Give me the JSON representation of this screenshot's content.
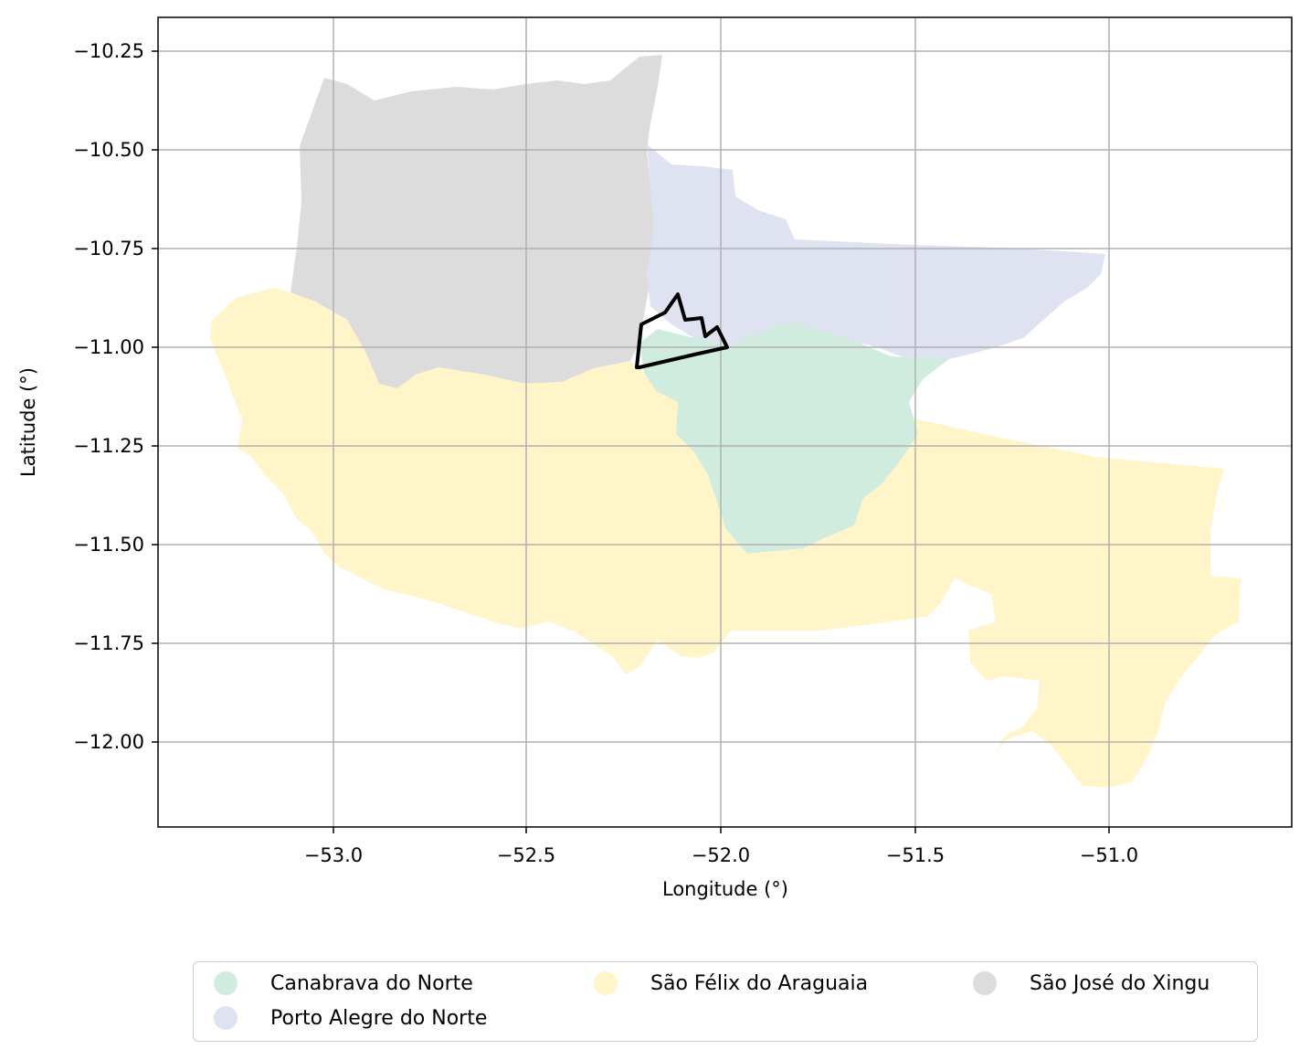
{
  "map": {
    "xlabel": "Longitude (°)",
    "ylabel": "Latitude (°)",
    "x_ticks": [
      "−53.0",
      "−52.5",
      "−52.0",
      "−51.5",
      "−51.0"
    ],
    "y_ticks": [
      "−10.25",
      "−10.50",
      "−10.75",
      "−11.00",
      "−11.25",
      "−11.50",
      "−11.75",
      "−12.00"
    ],
    "xlim": [
      -53.45,
      -50.53
    ],
    "ylim": [
      -12.22,
      -10.16
    ],
    "grid": true,
    "outline_color": "#000000"
  },
  "legend": {
    "placement": "bottom-center",
    "items": [
      {
        "label": "Canabrava do Norte",
        "color": "#d0ecdf"
      },
      {
        "label": "São Félix do Araguaia",
        "color": "#fff5c9"
      },
      {
        "label": "São José do Xingu",
        "color": "#dcdcdc"
      },
      {
        "label": "Porto Alegre do Norte",
        "color": "#dfe3f1"
      }
    ]
  }
}
